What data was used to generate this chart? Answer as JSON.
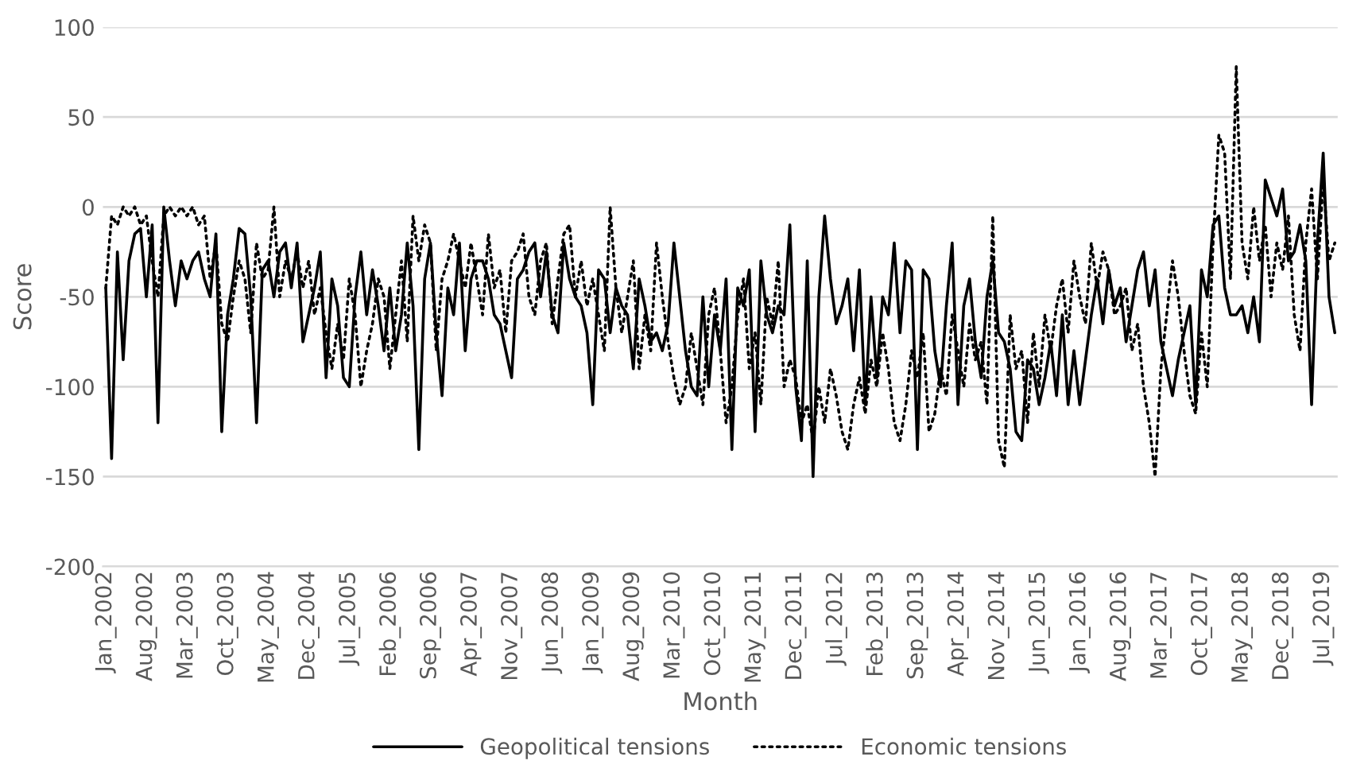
{
  "chart_data": {
    "type": "line",
    "xlabel": "Month",
    "ylabel": "Score",
    "categories": [
      "Jan_2002",
      null,
      null,
      null,
      null,
      null,
      null,
      "Aug_2002",
      null,
      null,
      null,
      null,
      null,
      null,
      "Mar_2003",
      null,
      null,
      null,
      null,
      null,
      null,
      "Oct_2003",
      null,
      null,
      null,
      null,
      null,
      null,
      "May_2004",
      null,
      null,
      null,
      null,
      null,
      null,
      "Dec_2004",
      null,
      null,
      null,
      null,
      null,
      null,
      "Jul_2005",
      null,
      null,
      null,
      null,
      null,
      null,
      "Feb_2006",
      null,
      null,
      null,
      null,
      null,
      null,
      "Sep_2006",
      null,
      null,
      null,
      null,
      null,
      null,
      "Apr_2007",
      null,
      null,
      null,
      null,
      null,
      null,
      "Nov_2007",
      null,
      null,
      null,
      null,
      null,
      null,
      "Jun_2008",
      null,
      null,
      null,
      null,
      null,
      null,
      "Jan_2009",
      null,
      null,
      null,
      null,
      null,
      null,
      "Aug_2009",
      null,
      null,
      null,
      null,
      null,
      null,
      "Mar_2010",
      null,
      null,
      null,
      null,
      null,
      null,
      "Oct_2010",
      null,
      null,
      null,
      null,
      null,
      null,
      "May_2011",
      null,
      null,
      null,
      null,
      null,
      null,
      "Dec_2011",
      null,
      null,
      null,
      null,
      null,
      null,
      "Jul_2012",
      null,
      null,
      null,
      null,
      null,
      null,
      "Feb_2013",
      null,
      null,
      null,
      null,
      null,
      null,
      "Sep_2013",
      null,
      null,
      null,
      null,
      null,
      null,
      "Apr_2014",
      null,
      null,
      null,
      null,
      null,
      null,
      "Nov_2014",
      null,
      null,
      null,
      null,
      null,
      null,
      "Jun_2015",
      null,
      null,
      null,
      null,
      null,
      null,
      "Jan_2016",
      null,
      null,
      null,
      null,
      null,
      null,
      "Aug_2016",
      null,
      null,
      null,
      null,
      null,
      null,
      "Mar_2017",
      null,
      null,
      null,
      null,
      null,
      null,
      "Oct_2017",
      null,
      null,
      null,
      null,
      null,
      null,
      "May_2018",
      null,
      null,
      null,
      null,
      null,
      null,
      "Dec_2018",
      null,
      null,
      null,
      null,
      null,
      null,
      "Jul_2019",
      null,
      null
    ],
    "series": [
      {
        "name": "Geopolitical tensions",
        "color": "#000000",
        "line_style": "solid",
        "values": [
          -45,
          -140,
          -25,
          -85,
          -30,
          -15,
          -12,
          -50,
          -10,
          -120,
          0,
          -30,
          -55,
          -30,
          -40,
          -30,
          -25,
          -40,
          -50,
          -15,
          -125,
          -60,
          -40,
          -12,
          -15,
          -50,
          -120,
          -35,
          -30,
          -50,
          -25,
          -20,
          -45,
          -20,
          -75,
          -60,
          -45,
          -25,
          -95,
          -40,
          -55,
          -95,
          -100,
          -50,
          -25,
          -60,
          -35,
          -55,
          -80,
          -45,
          -80,
          -60,
          -20,
          -55,
          -135,
          -40,
          -20,
          -70,
          -105,
          -45,
          -60,
          -20,
          -80,
          -40,
          -30,
          -30,
          -40,
          -60,
          -65,
          -80,
          -95,
          -40,
          -35,
          -25,
          -20,
          -50,
          -25,
          -60,
          -70,
          -20,
          -40,
          -50,
          -55,
          -70,
          -110,
          -35,
          -40,
          -70,
          -45,
          -55,
          -60,
          -90,
          -40,
          -55,
          -75,
          -70,
          -80,
          -65,
          -20,
          -50,
          -80,
          -100,
          -105,
          -50,
          -100,
          -60,
          -80,
          -40,
          -135,
          -45,
          -55,
          -35,
          -125,
          -30,
          -60,
          -70,
          -55,
          -60,
          -10,
          -100,
          -130,
          -30,
          -150,
          -50,
          -5,
          -40,
          -65,
          -55,
          -40,
          -80,
          -35,
          -110,
          -50,
          -95,
          -50,
          -60,
          -20,
          -70,
          -30,
          -35,
          -135,
          -35,
          -40,
          -80,
          -100,
          -55,
          -20,
          -110,
          -55,
          -40,
          -75,
          -95,
          -50,
          -30,
          -70,
          -75,
          -90,
          -125,
          -130,
          -85,
          -90,
          -110,
          -95,
          -75,
          -105,
          -60,
          -110,
          -80,
          -110,
          -85,
          -60,
          -40,
          -65,
          -35,
          -55,
          -45,
          -75,
          -55,
          -35,
          -25,
          -55,
          -35,
          -75,
          -90,
          -105,
          -85,
          -70,
          -55,
          -110,
          -35,
          -50,
          -10,
          -5,
          -45,
          -60,
          -60,
          -55,
          -70,
          -50,
          -75,
          15,
          5,
          -5,
          10,
          -30,
          -25,
          -10,
          -30,
          -110,
          -20,
          30,
          -50,
          -70
        ]
      },
      {
        "name": "Economic tensions",
        "color": "#000000",
        "line_style": "dotted",
        "values": [
          -45,
          -5,
          -10,
          0,
          -5,
          0,
          -10,
          -5,
          -30,
          -50,
          -5,
          0,
          -5,
          0,
          -5,
          0,
          -10,
          -5,
          -40,
          -20,
          -65,
          -75,
          -50,
          -30,
          -40,
          -70,
          -20,
          -40,
          -35,
          0,
          -50,
          -30,
          -40,
          -25,
          -45,
          -30,
          -60,
          -45,
          -70,
          -90,
          -65,
          -85,
          -40,
          -60,
          -100,
          -80,
          -65,
          -40,
          -50,
          -90,
          -60,
          -30,
          -75,
          -5,
          -30,
          -10,
          -20,
          -80,
          -40,
          -30,
          -15,
          -30,
          -45,
          -20,
          -40,
          -60,
          -15,
          -45,
          -35,
          -70,
          -30,
          -25,
          -15,
          -50,
          -60,
          -30,
          -20,
          -65,
          -40,
          -15,
          -10,
          -50,
          -30,
          -55,
          -40,
          -60,
          -80,
          0,
          -45,
          -70,
          -50,
          -30,
          -90,
          -60,
          -80,
          -20,
          -50,
          -75,
          -95,
          -110,
          -100,
          -70,
          -90,
          -110,
          -60,
          -45,
          -80,
          -120,
          -100,
          -60,
          -40,
          -90,
          -70,
          -110,
          -50,
          -65,
          -30,
          -100,
          -85,
          -95,
          -120,
          -110,
          -130,
          -100,
          -120,
          -90,
          -105,
          -125,
          -135,
          -110,
          -95,
          -115,
          -85,
          -100,
          -70,
          -90,
          -120,
          -130,
          -110,
          -80,
          -95,
          -70,
          -125,
          -115,
          -90,
          -105,
          -60,
          -80,
          -100,
          -65,
          -85,
          -75,
          -110,
          -5,
          -130,
          -145,
          -60,
          -90,
          -80,
          -120,
          -70,
          -100,
          -60,
          -80,
          -55,
          -40,
          -70,
          -30,
          -50,
          -65,
          -20,
          -45,
          -25,
          -35,
          -60,
          -55,
          -45,
          -80,
          -65,
          -100,
          -120,
          -150,
          -90,
          -60,
          -30,
          -50,
          -80,
          -105,
          -115,
          -70,
          -100,
          -20,
          40,
          30,
          -40,
          78,
          -20,
          -40,
          0,
          -30,
          -10,
          -50,
          -20,
          -35,
          -5,
          -60,
          -80,
          -20,
          10,
          -40,
          15,
          -30,
          -20
        ]
      }
    ],
    "ylim": [
      -200,
      100
    ],
    "yticks": [
      -200,
      -150,
      -100,
      -50,
      0,
      50,
      100
    ],
    "grid": "y",
    "legend": "bottom"
  }
}
